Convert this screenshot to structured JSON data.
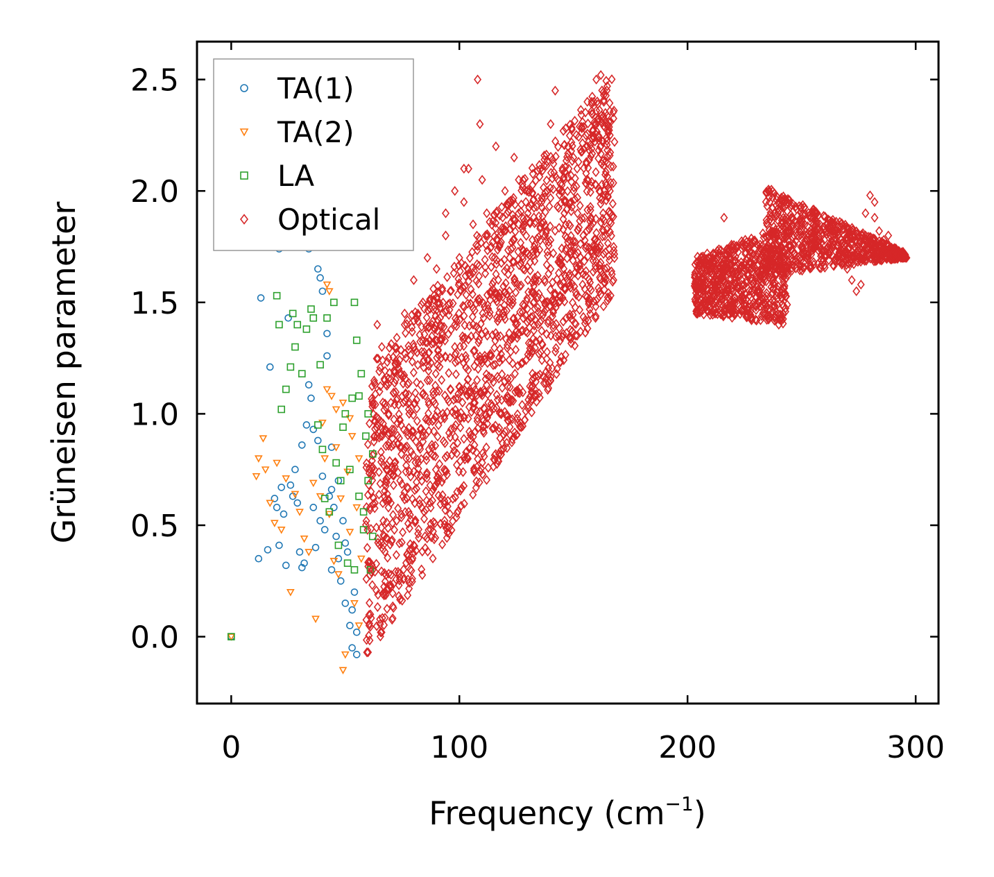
{
  "chart_data": {
    "type": "scatter",
    "title": "",
    "xlabel": "Frequency (cm",
    "xlabel_unit_sup": "−1",
    "xlabel_close": ")",
    "ylabel": "Grüneisen parameter",
    "xlim": [
      -15,
      310
    ],
    "ylim": [
      -0.3,
      2.67
    ],
    "xticks": [
      0,
      100,
      200,
      300
    ],
    "yticks": [
      0.0,
      0.5,
      1.0,
      1.5,
      2.0,
      2.5
    ],
    "xtick_labels": [
      "0",
      "100",
      "200",
      "300"
    ],
    "ytick_labels": [
      "0.0",
      "0.5",
      "1.0",
      "1.5",
      "2.0",
      "2.5"
    ],
    "grid": false,
    "legend_position": "top-left",
    "series": [
      {
        "name": "TA(1)",
        "marker": "circle",
        "color": "#1f77b4",
        "points": [
          [
            0,
            0
          ],
          [
            12,
            0.35
          ],
          [
            13,
            1.52
          ],
          [
            16,
            0.39
          ],
          [
            17,
            1.21
          ],
          [
            19,
            0.62
          ],
          [
            20,
            0.58
          ],
          [
            21,
            0.41
          ],
          [
            22,
            0.67
          ],
          [
            24,
            0.32
          ],
          [
            25,
            1.43
          ],
          [
            26,
            0.68
          ],
          [
            28,
            0.75
          ],
          [
            29,
            0.6
          ],
          [
            30,
            0.38
          ],
          [
            31,
            0.86
          ],
          [
            32,
            0.33
          ],
          [
            33,
            0.95
          ],
          [
            34,
            1.74
          ],
          [
            34,
            1.13
          ],
          [
            35,
            1.07
          ],
          [
            36,
            0.93
          ],
          [
            37,
            0.4
          ],
          [
            38,
            0.88
          ],
          [
            39,
            0.52
          ],
          [
            40,
            0.72
          ],
          [
            41,
            0.48
          ],
          [
            42,
            1.26
          ],
          [
            43,
            0.63
          ],
          [
            44,
            0.85
          ],
          [
            44,
            0.3
          ],
          [
            45,
            0.58
          ],
          [
            46,
            0.45
          ],
          [
            47,
            0.7
          ],
          [
            48,
            0.25
          ],
          [
            49,
            0.52
          ],
          [
            50,
            0.15
          ],
          [
            51,
            0.38
          ],
          [
            52,
            0.05
          ],
          [
            53,
            -0.05
          ],
          [
            54,
            0.2
          ],
          [
            55,
            0.02
          ],
          [
            38,
            1.65
          ],
          [
            39,
            1.61
          ],
          [
            40,
            1.55
          ],
          [
            42,
            1.36
          ],
          [
            21,
            1.74
          ],
          [
            23,
            0.55
          ],
          [
            27,
            0.63
          ],
          [
            31,
            0.31
          ],
          [
            36,
            0.58
          ],
          [
            44,
            0.66
          ],
          [
            47,
            0.35
          ],
          [
            50,
            0.42
          ],
          [
            53,
            0.12
          ],
          [
            55,
            -0.08
          ]
        ]
      },
      {
        "name": "TA(2)",
        "marker": "triangle-down",
        "color": "#ff7f0e",
        "points": [
          [
            0,
            0
          ],
          [
            11,
            0.72
          ],
          [
            12,
            0.8
          ],
          [
            14,
            0.89
          ],
          [
            15,
            0.75
          ],
          [
            17,
            0.6
          ],
          [
            19,
            0.51
          ],
          [
            20,
            0.78
          ],
          [
            22,
            0.48
          ],
          [
            24,
            0.71
          ],
          [
            26,
            0.2
          ],
          [
            28,
            0.64
          ],
          [
            30,
            0.56
          ],
          [
            32,
            0.44
          ],
          [
            34,
            0.38
          ],
          [
            36,
            0.69
          ],
          [
            37,
            0.08
          ],
          [
            39,
            0.63
          ],
          [
            40,
            0.96
          ],
          [
            41,
            0.8
          ],
          [
            42,
            1.11
          ],
          [
            43,
            0.55
          ],
          [
            44,
            1.08
          ],
          [
            45,
            0.34
          ],
          [
            46,
            0.85
          ],
          [
            47,
            0.28
          ],
          [
            48,
            0.62
          ],
          [
            49,
            1.05
          ],
          [
            50,
            -0.08
          ],
          [
            51,
            0.74
          ],
          [
            52,
            0.47
          ],
          [
            53,
            0.9
          ],
          [
            54,
            0.15
          ],
          [
            55,
            0.58
          ],
          [
            56,
            0.8
          ],
          [
            57,
            0.35
          ],
          [
            42,
            1.58
          ],
          [
            43,
            1.55
          ],
          [
            46,
            1.02
          ],
          [
            49,
            -0.15
          ],
          [
            52,
            0.98
          ],
          [
            56,
            0.05
          ]
        ]
      },
      {
        "name": "LA",
        "marker": "square",
        "color": "#2ca02c",
        "points": [
          [
            0,
            0
          ],
          [
            20,
            1.53
          ],
          [
            21,
            1.4
          ],
          [
            22,
            1.02
          ],
          [
            24,
            1.11
          ],
          [
            26,
            1.21
          ],
          [
            27,
            1.45
          ],
          [
            28,
            1.3
          ],
          [
            29,
            1.4
          ],
          [
            31,
            1.18
          ],
          [
            33,
            1.38
          ],
          [
            35,
            1.47
          ],
          [
            36,
            1.43
          ],
          [
            38,
            0.95
          ],
          [
            39,
            1.22
          ],
          [
            40,
            0.84
          ],
          [
            41,
            0.62
          ],
          [
            42,
            1.43
          ],
          [
            43,
            0.56
          ],
          [
            45,
            1.5
          ],
          [
            46,
            0.78
          ],
          [
            47,
            0.41
          ],
          [
            48,
            0.7
          ],
          [
            49,
            0.94
          ],
          [
            50,
            1.0
          ],
          [
            51,
            0.33
          ],
          [
            52,
            0.75
          ],
          [
            53,
            1.07
          ],
          [
            54,
            0.3
          ],
          [
            55,
            1.33
          ],
          [
            56,
            0.63
          ],
          [
            57,
            1.18
          ],
          [
            58,
            0.48
          ],
          [
            59,
            0.9
          ],
          [
            60,
            0.7
          ],
          [
            61,
            0.3
          ],
          [
            62,
            0.82
          ],
          [
            54,
            1.5
          ],
          [
            56,
            1.08
          ],
          [
            58,
            0.56
          ],
          [
            60,
            1.0
          ],
          [
            62,
            0.45
          ]
        ]
      },
      {
        "name": "Optical",
        "marker": "diamond",
        "color": "#d62728",
        "points": [
          [
            60,
            -0.07
          ],
          [
            61,
            0.1
          ],
          [
            62,
            0.3
          ],
          [
            63,
            0.6
          ],
          [
            64,
            0.9
          ],
          [
            65,
            1.1
          ],
          [
            66,
            1.3
          ],
          [
            67,
            0.45
          ],
          [
            68,
            0.75
          ],
          [
            70,
            1.05
          ],
          [
            72,
            1.22
          ],
          [
            74,
            0.85
          ],
          [
            76,
            1.4
          ],
          [
            78,
            1.0
          ],
          [
            80,
            1.3
          ],
          [
            82,
            0.78
          ],
          [
            84,
            1.5
          ],
          [
            86,
            1.15
          ],
          [
            88,
            1.4
          ],
          [
            90,
            1.65
          ],
          [
            92,
            1.25
          ],
          [
            94,
            1.8
          ],
          [
            96,
            1.55
          ],
          [
            98,
            2.0
          ],
          [
            100,
            1.7
          ],
          [
            102,
            1.95
          ],
          [
            104,
            2.1
          ],
          [
            106,
            1.85
          ],
          [
            108,
            2.5
          ],
          [
            109,
            2.3
          ],
          [
            110,
            2.05
          ],
          [
            112,
            1.9
          ],
          [
            114,
            1.75
          ],
          [
            116,
            2.2
          ],
          [
            118,
            1.8
          ],
          [
            120,
            2.0
          ],
          [
            122,
            1.7
          ],
          [
            124,
            2.15
          ],
          [
            126,
            1.85
          ],
          [
            128,
            1.65
          ],
          [
            130,
            1.9
          ],
          [
            132,
            1.78
          ],
          [
            134,
            1.72
          ],
          [
            136,
            1.95
          ],
          [
            138,
            1.82
          ],
          [
            140,
            2.3
          ],
          [
            142,
            2.45
          ],
          [
            144,
            1.7
          ],
          [
            146,
            1.9
          ],
          [
            148,
            1.85
          ],
          [
            150,
            2.0
          ],
          [
            152,
            1.62
          ],
          [
            154,
            1.58
          ],
          [
            156,
            2.2
          ],
          [
            158,
            2.4
          ],
          [
            160,
            2.5
          ],
          [
            162,
            2.52
          ],
          [
            164,
            2.35
          ],
          [
            166,
            2.25
          ],
          [
            168,
            2.22
          ],
          [
            64,
            1.4
          ],
          [
            72,
            1.3
          ],
          [
            76,
            1.45
          ],
          [
            80,
            1.6
          ],
          [
            86,
            1.7
          ],
          [
            94,
            1.9
          ],
          [
            102,
            2.1
          ],
          [
            126,
            2.05
          ],
          [
            150,
            2.15
          ],
          [
            160,
            2.3
          ],
          [
            66,
            0.8
          ],
          [
            70,
            0.6
          ],
          [
            74,
            0.7
          ],
          [
            78,
            0.8
          ],
          [
            84,
            0.9
          ],
          [
            90,
            1.1
          ],
          [
            98,
            1.3
          ],
          [
            106,
            1.4
          ],
          [
            114,
            1.55
          ],
          [
            122,
            1.5
          ],
          [
            130,
            1.6
          ],
          [
            140,
            1.65
          ],
          [
            148,
            1.62
          ],
          [
            155,
            1.56
          ],
          [
            163,
            1.9
          ],
          [
            166,
            2.0
          ],
          [
            210,
            1.65
          ],
          [
            212,
            1.6
          ],
          [
            214,
            1.72
          ],
          [
            216,
            1.88
          ],
          [
            218,
            1.7
          ],
          [
            220,
            1.55
          ],
          [
            222,
            1.62
          ],
          [
            224,
            1.5
          ],
          [
            226,
            1.6
          ],
          [
            228,
            1.55
          ],
          [
            230,
            1.48
          ],
          [
            232,
            1.62
          ],
          [
            234,
            1.52
          ],
          [
            236,
            1.95
          ],
          [
            238,
            1.9
          ],
          [
            240,
            1.4
          ],
          [
            242,
            1.88
          ],
          [
            244,
            1.82
          ],
          [
            246,
            1.85
          ],
          [
            248,
            1.8
          ],
          [
            250,
            1.82
          ],
          [
            252,
            1.78
          ],
          [
            254,
            1.76
          ],
          [
            256,
            1.8
          ],
          [
            258,
            1.75
          ],
          [
            260,
            1.78
          ],
          [
            262,
            1.72
          ],
          [
            264,
            1.76
          ],
          [
            266,
            1.8
          ],
          [
            268,
            1.7
          ],
          [
            270,
            1.65
          ],
          [
            272,
            1.6
          ],
          [
            274,
            1.55
          ],
          [
            276,
            1.7
          ],
          [
            278,
            1.9
          ],
          [
            280,
            1.98
          ],
          [
            282,
            1.88
          ],
          [
            284,
            1.82
          ],
          [
            286,
            1.78
          ],
          [
            288,
            1.76
          ],
          [
            290,
            1.74
          ],
          [
            292,
            1.72
          ],
          [
            294,
            1.7
          ],
          [
            296,
            1.7
          ],
          [
            206,
            1.7
          ],
          [
            204,
            1.68
          ],
          [
            212,
            1.45
          ],
          [
            218,
            1.55
          ],
          [
            226,
            1.45
          ],
          [
            232,
            1.42
          ],
          [
            238,
            1.48
          ],
          [
            244,
            1.68
          ],
          [
            250,
            1.72
          ],
          [
            258,
            1.85
          ],
          [
            264,
            1.82
          ],
          [
            270,
            1.83
          ],
          [
            276,
            1.58
          ],
          [
            282,
            1.95
          ],
          [
            288,
            1.8
          ]
        ]
      }
    ],
    "dense_regions": [
      {
        "series": "Optical",
        "x_range": [
          59,
          168
        ],
        "y_lower_start": -0.1,
        "y_lower_end": 1.55,
        "y_upper_start": 1.2,
        "y_upper_end": 2.55
      },
      {
        "series": "Optical",
        "x_range": [
          203,
          244
        ],
        "y_lower_start": 1.45,
        "y_lower_end": 1.4,
        "y_upper_start": 1.7,
        "y_upper_end": 1.85
      },
      {
        "series": "Optical",
        "x_range": [
          234,
          296
        ],
        "y_lower_start": 1.62,
        "y_lower_end": 1.7,
        "y_upper_start": 2.02,
        "y_upper_end": 1.72
      }
    ]
  }
}
